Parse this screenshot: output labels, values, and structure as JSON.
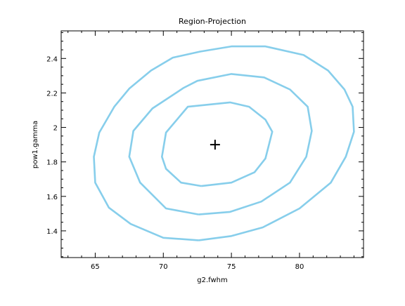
{
  "chart_data": {
    "type": "line",
    "title": "Region-Projection",
    "xlabel": "g2.fwhm",
    "ylabel": "pow1.gamma",
    "xlim": [
      62.5,
      84.7
    ],
    "ylim": [
      1.245,
      2.56
    ],
    "xticks": [
      65,
      70,
      75,
      80
    ],
    "xtick_labels": [
      "65",
      "70",
      "75",
      "80"
    ],
    "yticks": [
      1.4,
      1.6,
      1.8,
      2.0,
      2.2,
      2.4
    ],
    "ytick_labels": [
      "1.4",
      "1.6",
      "1.8",
      "2",
      "2.2",
      "2.4"
    ],
    "grid": false,
    "line_color": "#87CEEB",
    "best_fit": {
      "x": 73.8,
      "y": 1.9,
      "marker": "plus"
    },
    "series": [
      {
        "points": [
          [
            72.8,
            1.66
          ],
          [
            71.3,
            1.68
          ],
          [
            70.2,
            1.76
          ],
          [
            69.9,
            1.83
          ],
          [
            70.2,
            1.97
          ],
          [
            71.8,
            2.12
          ],
          [
            74.9,
            2.145
          ],
          [
            76.3,
            2.12
          ],
          [
            77.5,
            2.045
          ],
          [
            78.0,
            1.975
          ],
          [
            77.5,
            1.82
          ],
          [
            76.7,
            1.74
          ],
          [
            75.0,
            1.68
          ],
          [
            72.8,
            1.66
          ]
        ]
      },
      {
        "points": [
          [
            72.6,
            1.495
          ],
          [
            70.2,
            1.53
          ],
          [
            68.3,
            1.68
          ],
          [
            67.5,
            1.83
          ],
          [
            67.8,
            1.98
          ],
          [
            69.2,
            2.11
          ],
          [
            71.5,
            2.23
          ],
          [
            72.5,
            2.27
          ],
          [
            75.0,
            2.31
          ],
          [
            77.4,
            2.29
          ],
          [
            79.3,
            2.22
          ],
          [
            80.6,
            2.12
          ],
          [
            80.9,
            1.98
          ],
          [
            80.5,
            1.83
          ],
          [
            79.3,
            1.68
          ],
          [
            77.2,
            1.57
          ],
          [
            74.9,
            1.51
          ],
          [
            72.6,
            1.495
          ]
        ]
      },
      {
        "points": [
          [
            72.6,
            1.345
          ],
          [
            70.0,
            1.36
          ],
          [
            67.6,
            1.44
          ],
          [
            66.0,
            1.535
          ],
          [
            65.0,
            1.68
          ],
          [
            64.9,
            1.83
          ],
          [
            65.3,
            1.97
          ],
          [
            66.4,
            2.12
          ],
          [
            67.5,
            2.225
          ],
          [
            69.1,
            2.33
          ],
          [
            70.7,
            2.405
          ],
          [
            72.7,
            2.44
          ],
          [
            75.0,
            2.47
          ],
          [
            77.5,
            2.47
          ],
          [
            80.3,
            2.42
          ],
          [
            82.1,
            2.33
          ],
          [
            83.3,
            2.22
          ],
          [
            83.9,
            2.12
          ],
          [
            84.0,
            1.975
          ],
          [
            83.4,
            1.83
          ],
          [
            82.3,
            1.68
          ],
          [
            80.0,
            1.53
          ],
          [
            77.3,
            1.42
          ],
          [
            75.0,
            1.37
          ],
          [
            72.6,
            1.345
          ]
        ]
      }
    ]
  }
}
